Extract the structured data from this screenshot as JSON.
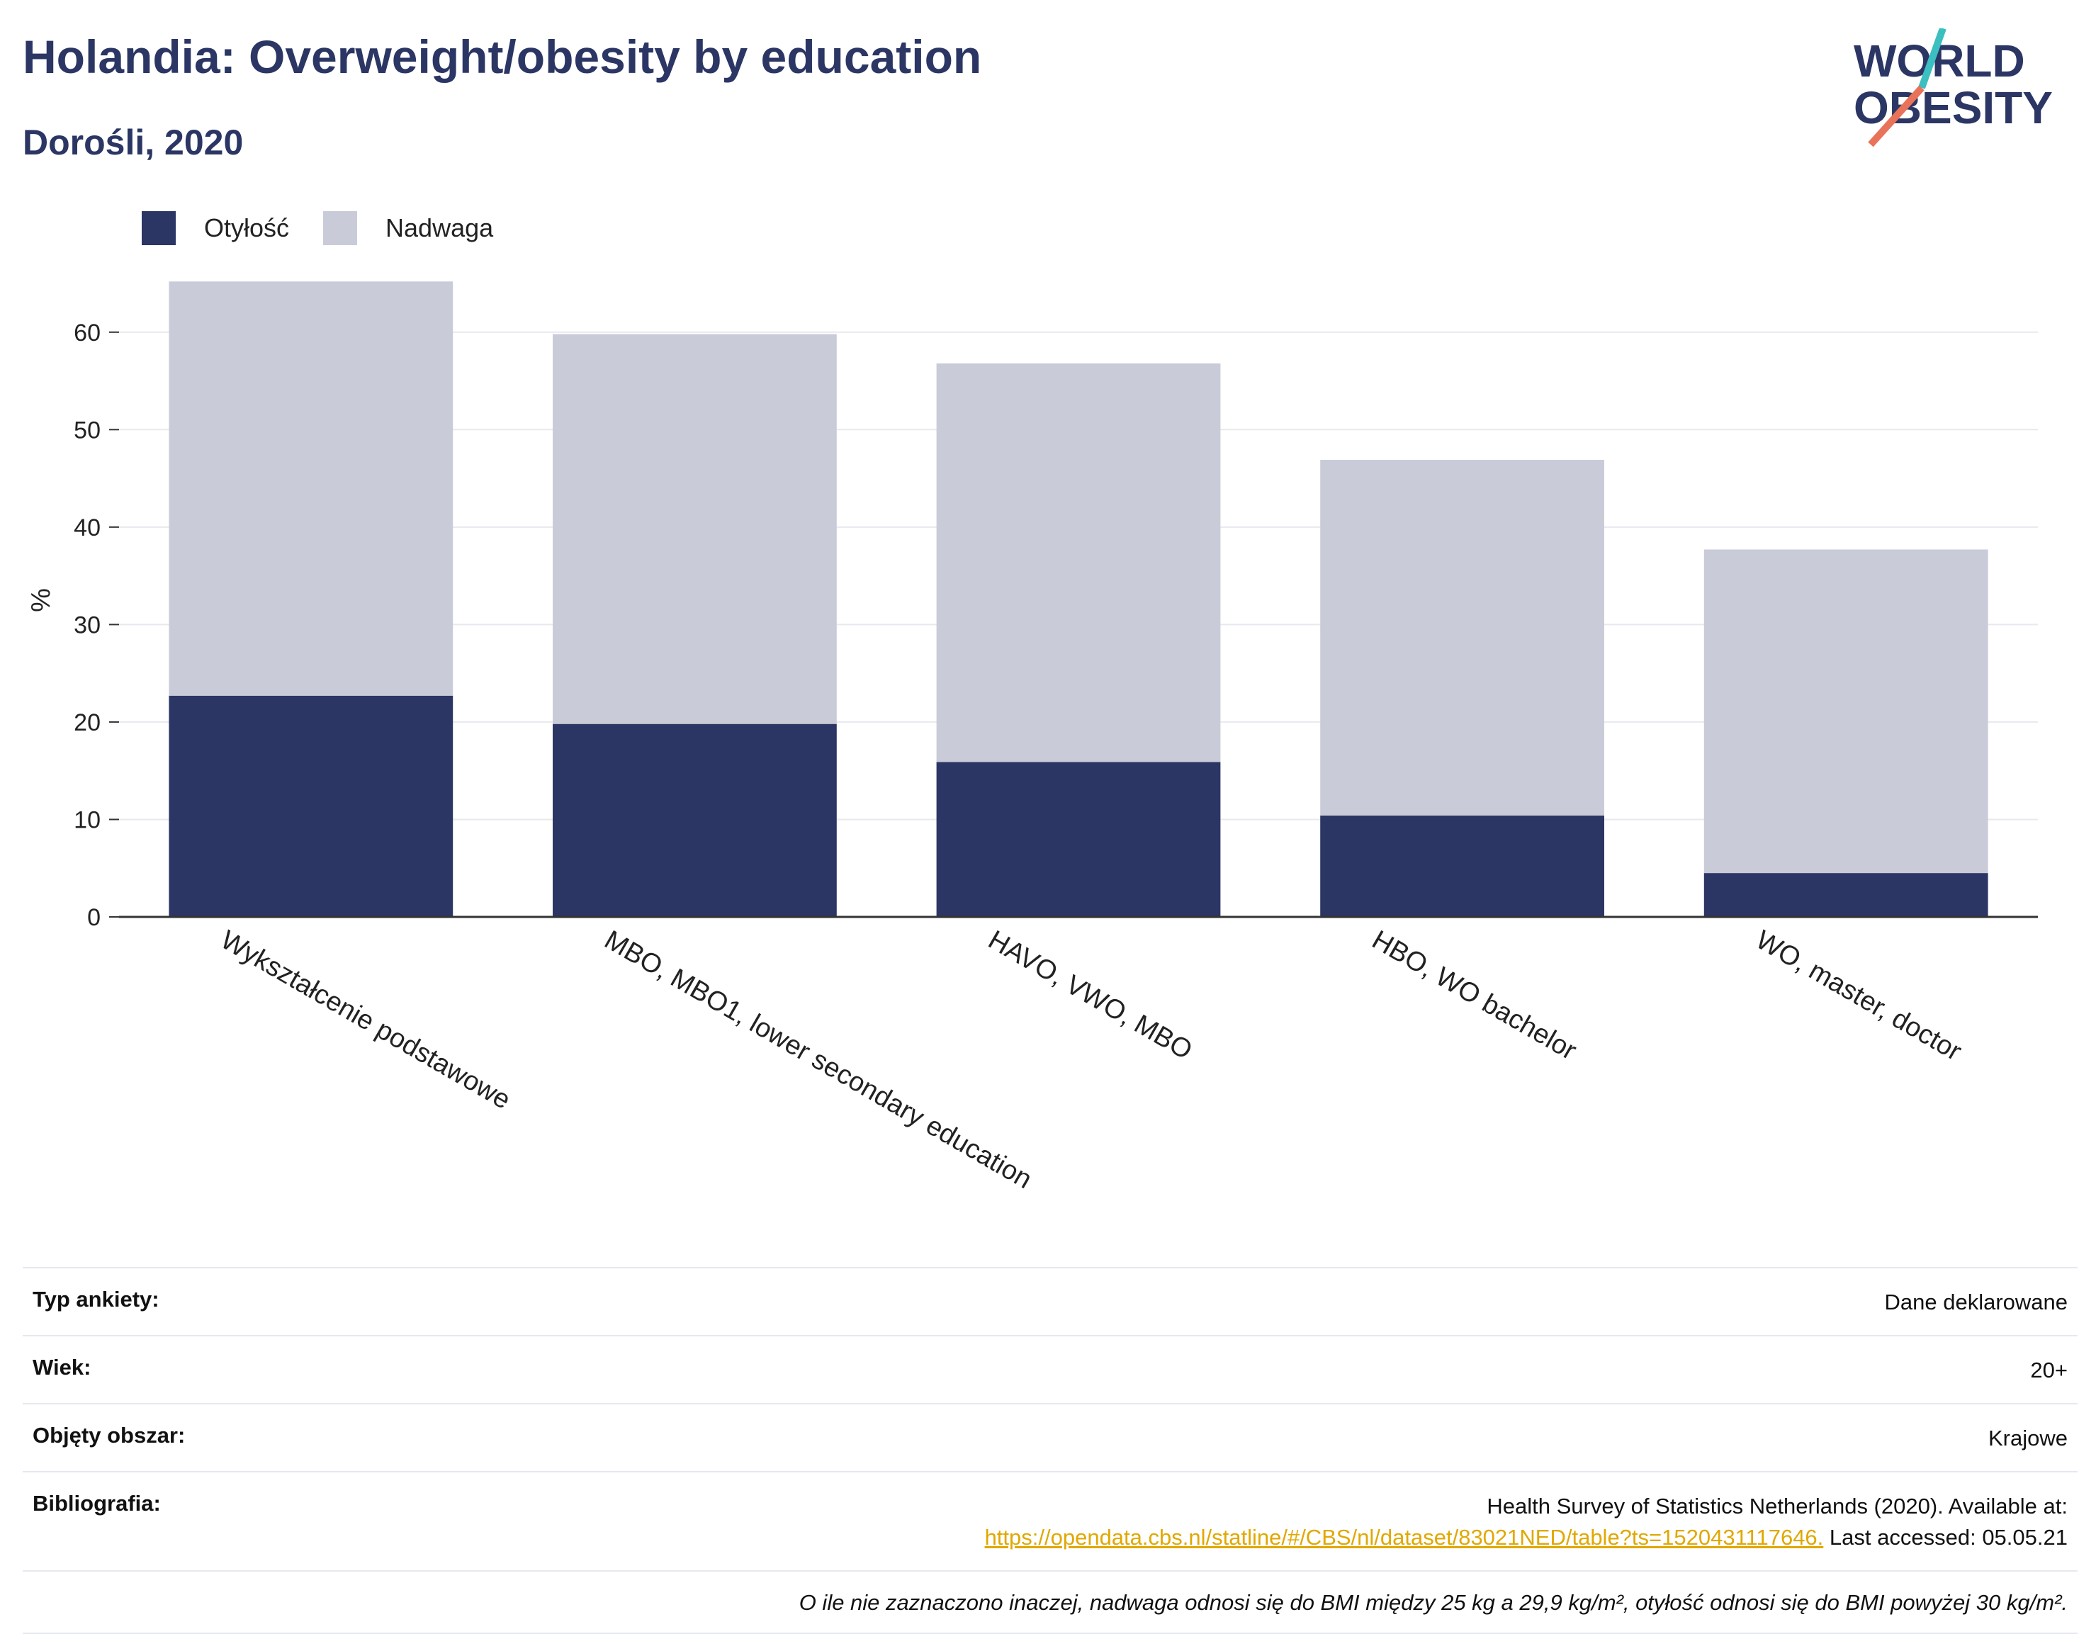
{
  "header": {
    "title": "Holandia: Overweight/obesity by education",
    "subtitle": "Dorośli, 2020"
  },
  "logo": {
    "line1": "WORLD",
    "line2": "OBESITY",
    "accent_teal": "#3bbfc0",
    "accent_coral": "#e8735a"
  },
  "colors": {
    "obesity": "#2b3664",
    "overweight": "#c9ccd8"
  },
  "chart_data": {
    "type": "bar",
    "stacked": true,
    "categories": [
      "Wykształcenie podstawowe",
      "MBO, MBO1, lower secondary education",
      "HAVO, VWO, MBO",
      "HBO, WO bachelor",
      "WO, master, doctor"
    ],
    "series": [
      {
        "name": "Otyłość",
        "values": [
          22.7,
          19.8,
          15.9,
          10.4,
          4.5
        ]
      },
      {
        "name": "Nadwaga",
        "values": [
          42.5,
          40.0,
          40.9,
          36.5,
          33.2
        ]
      }
    ],
    "ylabel": "%",
    "ylim": [
      0,
      65
    ],
    "yticks": [
      0,
      10,
      20,
      30,
      40,
      50,
      60
    ],
    "grid": true,
    "legend": "top-left"
  },
  "meta": {
    "survey_label": "Typ ankiety:",
    "survey_value": "Dane deklarowane",
    "age_label": "Wiek:",
    "age_value": "20+",
    "area_label": "Objęty obszar:",
    "area_value": "Krajowe",
    "bib_label": "Bibliografia:",
    "bib_text": "Health Survey of Statistics Netherlands (2020). Available at:",
    "bib_link": "https://opendata.cbs.nl/statline/#/CBS/nl/dataset/83021NED/table?ts=1520431117646.",
    "bib_accessed": "Last accessed: 05.05.21",
    "note": "O ile nie zaznaczono inaczej, nadwaga odnosi się do BMI między 25 kg a 29,9 kg/m², otyłość odnosi się do BMI powyżej 30 kg/m²."
  }
}
